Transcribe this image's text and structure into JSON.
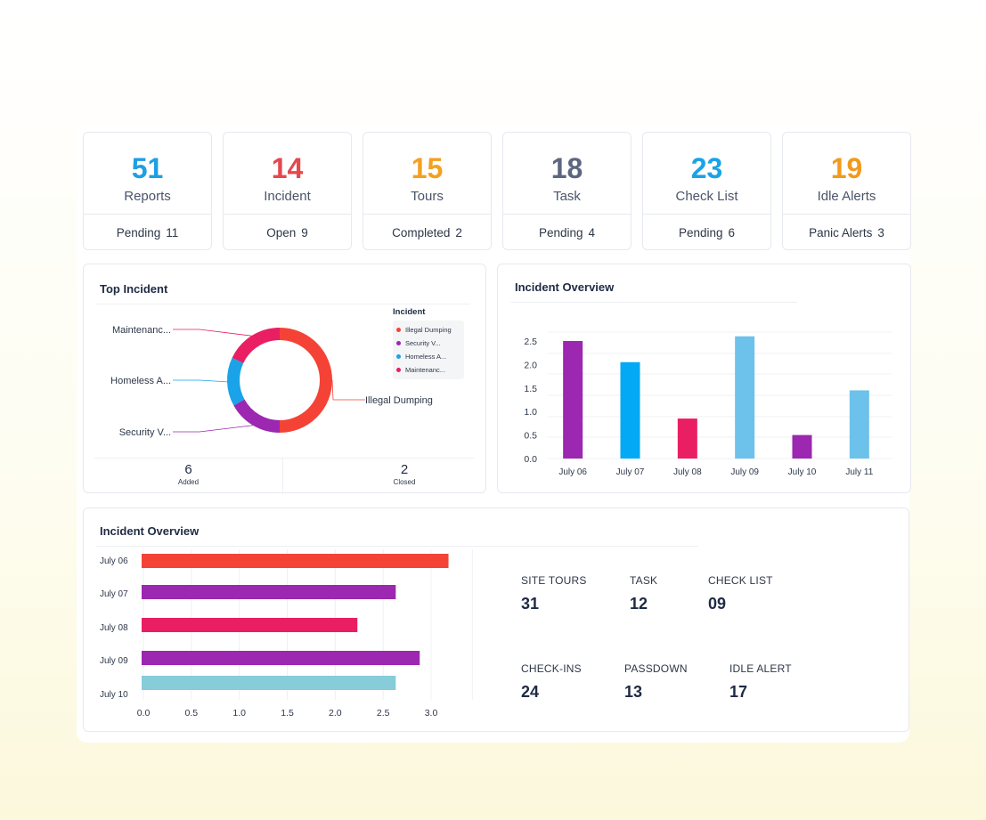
{
  "colors": {
    "blue": "#1aa3e8",
    "red": "#e5484d",
    "orange": "#f5a623",
    "slate": "#5a6478",
    "sky": "#1aa3e8",
    "amber": "#f29a1c"
  },
  "stats": [
    {
      "value": "51",
      "label": "Reports",
      "foot_label": "Pending",
      "foot_value": "11",
      "color": "#1e9fe4"
    },
    {
      "value": "14",
      "label": "Incident",
      "foot_label": "Open",
      "foot_value": "9",
      "color": "#e5484d"
    },
    {
      "value": "15",
      "label": "Tours",
      "foot_label": "Completed",
      "foot_value": "2",
      "color": "#f5a020"
    },
    {
      "value": "18",
      "label": "Task",
      "foot_label": "Pending",
      "foot_value": "4",
      "color": "#5d6680"
    },
    {
      "value": "23",
      "label": "Check List",
      "foot_label": "Pending",
      "foot_value": "6",
      "color": "#1aa3e8"
    },
    {
      "value": "19",
      "label": "Idle Alerts",
      "foot_label": "Panic Alerts",
      "foot_value": "3",
      "color": "#f29a1c"
    }
  ],
  "top_incident": {
    "title": "Top Incident",
    "legend_title": "Incident",
    "slices": [
      {
        "name": "Illegal Dumping",
        "legend": "Illegal Dumping",
        "callout": "Illegal Dumping",
        "value": 50,
        "color": "#f44336"
      },
      {
        "name": "Security Violation",
        "legend": "Security V...",
        "callout": "Security V...",
        "value": 17,
        "color": "#9c27b0"
      },
      {
        "name": "Homeless Activity",
        "legend": "Homeless A...",
        "callout": "Homeless A...",
        "value": 15,
        "color": "#1aa3e8"
      },
      {
        "name": "Maintenance",
        "legend": "Maintenanc...",
        "callout": "Maintenanc...",
        "value": 18,
        "color": "#e91e63"
      }
    ],
    "added_value": "6",
    "added_label": "Added",
    "closed_value": "2",
    "closed_label": "Closed"
  },
  "chart_data": [
    {
      "type": "bar",
      "title": "Incident Overview",
      "orientation": "vertical",
      "categories": [
        "July 06",
        "July 07",
        "July 08",
        "July 09",
        "July 10",
        "July 11"
      ],
      "values": [
        2.5,
        2.05,
        0.85,
        2.6,
        0.5,
        1.45
      ],
      "colors": [
        "#9c27b0",
        "#03a9f4",
        "#e91e63",
        "#6cc2ea",
        "#9c27b0",
        "#6cc2ea"
      ],
      "ylim": [
        0,
        2.5
      ],
      "yticks": [
        "0.0",
        "0.5",
        "1.0",
        "1.5",
        "2.0",
        "2.5"
      ],
      "xlabel": "",
      "ylabel": "",
      "grid": true
    },
    {
      "type": "bar",
      "title": "Incident Overview",
      "orientation": "horizontal",
      "categories": [
        "July 06",
        "July 07",
        "July 08",
        "July 09",
        "July 10"
      ],
      "values": [
        3.2,
        2.65,
        2.25,
        2.9,
        2.65
      ],
      "colors": [
        "#f44336",
        "#9c27b0",
        "#e91e63",
        "#9c27b0",
        "#86ccd9"
      ],
      "xlim": [
        0,
        3.5
      ],
      "xticks": [
        "0.0",
        "0.5",
        "1.0",
        "1.5",
        "2.0",
        "2.5",
        "3.0"
      ],
      "xlabel": "",
      "ylabel": "",
      "grid": true
    }
  ],
  "metrics": [
    {
      "label": "SITE TOURS",
      "value": "31"
    },
    {
      "label": "TASK",
      "value": "12"
    },
    {
      "label": "CHECK LIST",
      "value": "09"
    },
    {
      "label": "CHECK-INS",
      "value": "24"
    },
    {
      "label": "PASSDOWN",
      "value": "13"
    },
    {
      "label": "IDLE ALERT",
      "value": "17"
    }
  ]
}
